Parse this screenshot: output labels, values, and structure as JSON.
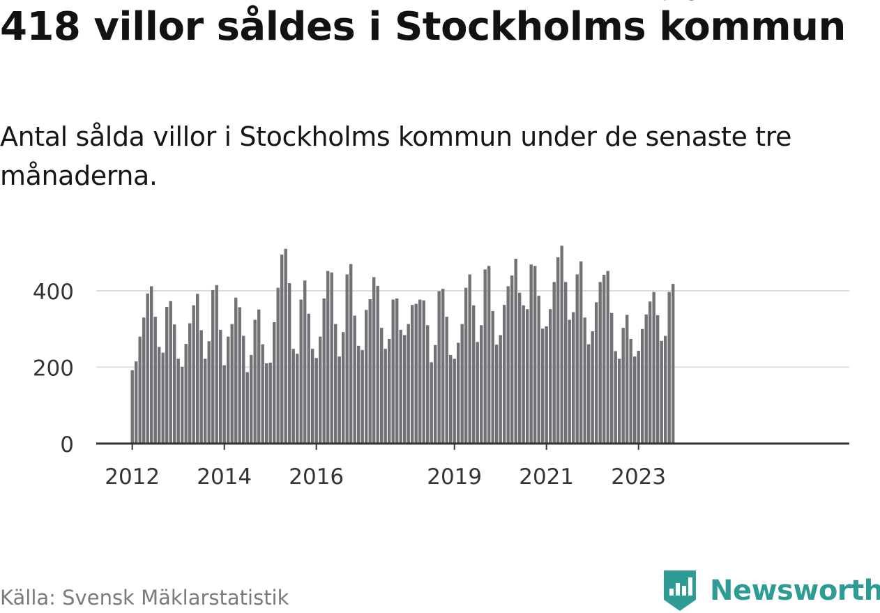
{
  "title": "418 villor såldes i Stockholms kommun",
  "subtitle": "Antal sålda villor i Stockholms kommun under de senaste tre månaderna.",
  "source": "Källa: Svensk Mäklarstatistik",
  "brand": {
    "name": "Newsworthy",
    "color": "#2e9c94"
  },
  "colors": {
    "bar": "#727176",
    "highlight": "#1aa69c",
    "grid": "#dddddd",
    "axis": "#333333"
  },
  "chart_data": {
    "type": "bar",
    "title": "418 villor såldes i Stockholms kommun",
    "subtitle": "Antal sålda villor i Stockholms kommun under de senaste tre månaderna.",
    "xlabel": "",
    "ylabel": "",
    "ylim": [
      0,
      560
    ],
    "yticks": [
      0,
      200,
      400
    ],
    "grid": true,
    "start": "2012-01",
    "frequency": "monthly",
    "xticks": [
      {
        "label": "2012",
        "index": 0
      },
      {
        "label": "2014",
        "index": 24
      },
      {
        "label": "2016",
        "index": 48
      },
      {
        "label": "2019",
        "index": 84
      },
      {
        "label": "2021",
        "index": 108
      },
      {
        "label": "2023",
        "index": 132
      }
    ],
    "highlight": {
      "index": 142,
      "label": "418"
    },
    "values": [
      192,
      215,
      280,
      330,
      393,
      412,
      332,
      253,
      238,
      358,
      373,
      312,
      222,
      201,
      261,
      315,
      362,
      392,
      297,
      222,
      268,
      402,
      415,
      298,
      205,
      280,
      313,
      382,
      357,
      282,
      187,
      232,
      324,
      351,
      260,
      210,
      212,
      318,
      408,
      495,
      510,
      420,
      248,
      235,
      377,
      427,
      340,
      248,
      224,
      280,
      380,
      452,
      448,
      313,
      228,
      292,
      443,
      470,
      335,
      256,
      245,
      350,
      378,
      436,
      413,
      303,
      248,
      274,
      377,
      380,
      298,
      284,
      313,
      363,
      366,
      377,
      375,
      310,
      213,
      258,
      399,
      405,
      332,
      232,
      222,
      264,
      313,
      408,
      443,
      362,
      266,
      310,
      456,
      465,
      347,
      259,
      284,
      363,
      412,
      440,
      484,
      395,
      362,
      352,
      469,
      465,
      387,
      301,
      307,
      352,
      423,
      488,
      518,
      423,
      324,
      344,
      443,
      477,
      330,
      260,
      294,
      370,
      423,
      442,
      452,
      342,
      242,
      222,
      303,
      337,
      274,
      228,
      243,
      300,
      338,
      372,
      397,
      336,
      269,
      282,
      397,
      418
    ]
  }
}
